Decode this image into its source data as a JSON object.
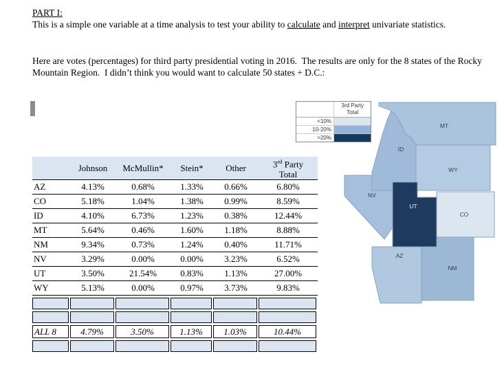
{
  "document": {
    "part_title": "PART I:",
    "intro": {
      "pre": "This is a simple one variable at a time analysis to test your ability to ",
      "underline1": "calculate",
      "mid": " and ",
      "underline2": "interpret",
      "post": " univariate statistics."
    },
    "prompt": "Here are votes (percentages) for third party presidential voting in 2016.  The results are only for the 8 states of the Rocky Mountain Region.  I didn’t think you would want to calculate 50 states + D.C.:"
  },
  "legend": {
    "title_line1": "3rd Party",
    "title_line2": "Total",
    "items": [
      {
        "label": "<10%",
        "color": "#dce6f1"
      },
      {
        "label": "10-20%",
        "color": "#95b3d7"
      },
      {
        "label": ">20%",
        "color": "#17375d"
      }
    ]
  },
  "table": {
    "headers": {
      "state": "",
      "johnson": "Johnson",
      "mcmullin": "McMullin*",
      "stein": "Stein*",
      "other": "Other",
      "third_line1_num": "3",
      "third_line1_sup": "rd",
      "third_line1_rest": " Party",
      "third_line2": "Total"
    },
    "rows": [
      {
        "state": "AZ",
        "values": [
          "4.13%",
          "0.68%",
          "1.33%",
          "0.66%",
          "6.80%"
        ]
      },
      {
        "state": "CO",
        "values": [
          "5.18%",
          "1.04%",
          "1.38%",
          "0.99%",
          "8.59%"
        ]
      },
      {
        "state": "ID",
        "values": [
          "4.10%",
          "6.73%",
          "1.23%",
          "0.38%",
          "12.44%"
        ]
      },
      {
        "state": "MT",
        "values": [
          "5.64%",
          "0.46%",
          "1.60%",
          "1.18%",
          "8.88%"
        ]
      },
      {
        "state": "NM",
        "values": [
          "9.34%",
          "0.73%",
          "1.24%",
          "0.40%",
          "11.71%"
        ]
      },
      {
        "state": "NV",
        "values": [
          "3.29%",
          "0.00%",
          "0.00%",
          "3.23%",
          "6.52%"
        ]
      },
      {
        "state": "UT",
        "values": [
          "3.50%",
          "21.54%",
          "0.83%",
          "1.13%",
          "27.00%"
        ]
      },
      {
        "state": "WY",
        "values": [
          "5.13%",
          "0.00%",
          "0.97%",
          "3.73%",
          "9.83%"
        ]
      }
    ],
    "summary": {
      "label": "ALL 8",
      "values": [
        "4.79%",
        "3.50%",
        "1.13%",
        "1.03%",
        "10.44%"
      ]
    }
  },
  "map": {
    "states": [
      {
        "abbr": "NV",
        "fill": "#a5bfdc",
        "label_color": "#3f3f3f"
      },
      {
        "abbr": "MT",
        "fill": "#aac4de",
        "label_color": "#3f3f3f"
      },
      {
        "abbr": "ID",
        "fill": "#9fbbd9",
        "label_color": "#3f3f3f"
      },
      {
        "abbr": "WY",
        "fill": "#b3cbe3",
        "label_color": "#3f3f3f"
      },
      {
        "abbr": "CO",
        "fill": "#dce6f1",
        "label_color": "#3f3f3f"
      },
      {
        "abbr": "NM",
        "fill": "#9cb8d5",
        "label_color": "#3f3f3f"
      },
      {
        "abbr": "AZ",
        "fill": "#b0c8e0",
        "label_color": "#3f3f3f"
      },
      {
        "abbr": "UT",
        "fill": "#1f3a5f",
        "label_color": "#ffffff"
      }
    ]
  }
}
